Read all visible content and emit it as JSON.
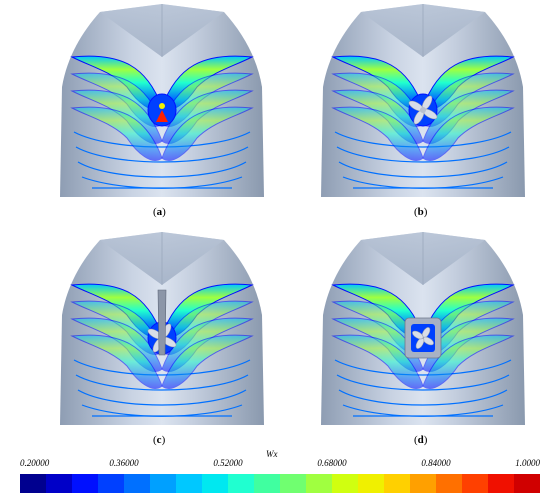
{
  "panels": [
    {
      "id": "a",
      "label": "a",
      "variant": "hull-only"
    },
    {
      "id": "b",
      "label": "b",
      "variant": "propeller"
    },
    {
      "id": "c",
      "label": "c",
      "variant": "propeller-rudder"
    },
    {
      "id": "d",
      "label": "d",
      "variant": "propeller-duct"
    }
  ],
  "colorbar": {
    "title": "Wx",
    "ticks": [
      "0.20000",
      "0.36000",
      "0.52000",
      "0.68000",
      "0.84000",
      "1.0000"
    ],
    "min": 0.2,
    "max": 1.0,
    "colors": [
      "#00008f",
      "#0000c8",
      "#0010ff",
      "#0040ff",
      "#0070ff",
      "#00a0ff",
      "#00c8ff",
      "#00e8f0",
      "#20ffd0",
      "#40ffa0",
      "#70ff70",
      "#a0ff40",
      "#d0ff10",
      "#f0f000",
      "#ffd000",
      "#ffa000",
      "#ff7000",
      "#ff4000",
      "#f01000",
      "#d00000"
    ]
  }
}
